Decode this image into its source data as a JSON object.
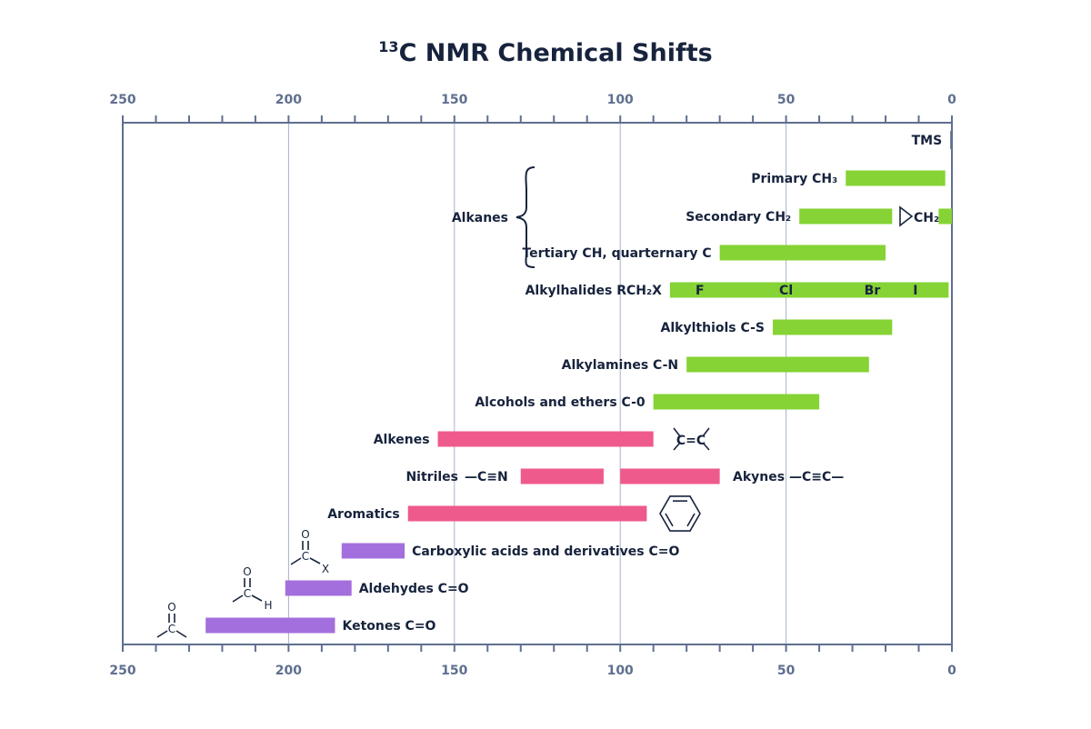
{
  "chart_data": {
    "type": "bar",
    "orientation": "horizontal-range",
    "title_main": "C NMR Chemical Shifts",
    "title_sup": "13",
    "xlim": [
      250,
      0
    ],
    "xticks": [
      250,
      200,
      150,
      100,
      50,
      0
    ],
    "minor_step": 10,
    "grid": true,
    "colors": {
      "alkyl": "#85d334",
      "unsat": "#ef5a8c",
      "carbonyl": "#a36fdc",
      "tms": "#5f6f8f",
      "axis": "#5f6f8f",
      "grid": "#a8b2c6",
      "text": "#17233d"
    },
    "series": [
      {
        "name": "TMS",
        "ranges": [
          [
            0.5,
            0
          ]
        ],
        "group": "tms"
      },
      {
        "name": "Primary CH₃",
        "ranges": [
          [
            32,
            2
          ]
        ],
        "group": "alkyl"
      },
      {
        "name": "Secondary CH₂",
        "ranges": [
          [
            46,
            18
          ],
          [
            4,
            0
          ]
        ],
        "group": "alkyl"
      },
      {
        "name": "Tertiary CH, quarternary C",
        "ranges": [
          [
            70,
            20
          ]
        ],
        "group": "alkyl"
      },
      {
        "name": "Alkylhalides RCH₂X",
        "ranges": [
          [
            85,
            1
          ]
        ],
        "group": "alkyl"
      },
      {
        "name": "Alkylthiols C-S",
        "ranges": [
          [
            54,
            18
          ]
        ],
        "group": "alkyl"
      },
      {
        "name": "Alkylamines C-N",
        "ranges": [
          [
            80,
            25
          ]
        ],
        "group": "alkyl"
      },
      {
        "name": "Alcohols and ethers C-0",
        "ranges": [
          [
            90,
            40
          ]
        ],
        "group": "alkyl"
      },
      {
        "name": "Alkenes",
        "ranges": [
          [
            155,
            90
          ]
        ],
        "group": "unsat"
      },
      {
        "name": "Nitriles",
        "ranges": [
          [
            130,
            105
          ]
        ],
        "group": "unsat"
      },
      {
        "name": "Akynes",
        "ranges": [
          [
            100,
            70
          ]
        ],
        "group": "unsat"
      },
      {
        "name": "Aromatics",
        "ranges": [
          [
            164,
            92
          ]
        ],
        "group": "unsat"
      },
      {
        "name": "Carboxylic acids and derivatives C=O",
        "ranges": [
          [
            184,
            165
          ]
        ],
        "group": "carbonyl"
      },
      {
        "name": "Aldehydes C=O",
        "ranges": [
          [
            201,
            181
          ]
        ],
        "group": "carbonyl"
      },
      {
        "name": "Ketones C=O",
        "ranges": [
          [
            225,
            186
          ]
        ],
        "group": "carbonyl"
      }
    ],
    "annotations": {
      "alkanes": "Alkanes",
      "cyclopropane": "CH₂",
      "halogens": [
        {
          "text": "F",
          "x": 76
        },
        {
          "text": "Cl",
          "x": 50
        },
        {
          "text": "Br",
          "x": 24
        },
        {
          "text": "I",
          "x": 11
        }
      ],
      "nitrile_formula": "—C≡N",
      "alkyne_formula": "—C≡C—",
      "alkene_formula": "C=C",
      "atoms": {
        "o": "O",
        "c": "C",
        "x": "X",
        "h": "H"
      }
    }
  }
}
